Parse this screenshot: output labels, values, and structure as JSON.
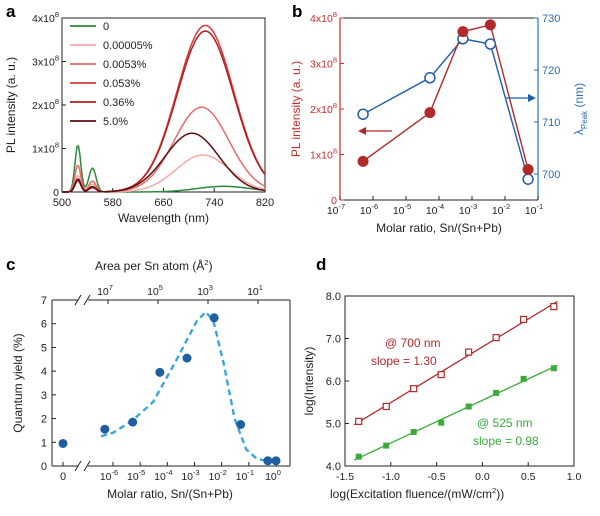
{
  "panels": {
    "a": {
      "letter": "a"
    },
    "b": {
      "letter": "b"
    },
    "c": {
      "letter": "c"
    },
    "d": {
      "letter": "d"
    }
  },
  "colors": {
    "axis": "#222222",
    "red_dark": "#b02a2a",
    "red_axis": "#c0302a",
    "blue": "#1f5fa8",
    "blue_axis": "#2a6db3",
    "green": "#3aaa3a",
    "cyan_dash": "#3aa6dc",
    "c_dots": "#1f5f9f"
  },
  "chart_data": [
    {
      "panel": "a",
      "type": "line",
      "xlabel": "Wavelength (nm)",
      "ylabel": "PL intensity (a. u.)",
      "xlim": [
        500,
        820
      ],
      "ylim": [
        0,
        400000000.0
      ],
      "x_ticks": [
        500,
        580,
        660,
        740,
        820
      ],
      "y_ticks": [
        {
          "value": 0,
          "label": "0"
        },
        {
          "value": 100000000.0,
          "label": "1x10",
          "exp": "8"
        },
        {
          "value": 200000000.0,
          "label": "2x10",
          "exp": "8"
        },
        {
          "value": 300000000.0,
          "label": "3x10",
          "exp": "8"
        },
        {
          "value": 400000000.0,
          "label": "4x10",
          "exp": "8"
        }
      ],
      "legend_position": "top-left",
      "series": [
        {
          "name": "0",
          "color": "#2f8a3a",
          "peak2_amp": 13000000.0,
          "peak2_center": 755,
          "peak2_width": 60,
          "peak1_amp": 108000000.0,
          "peak1_center": 525,
          "peak1_width": 6.5,
          "shoulder_amp": 55000000.0,
          "shoulder_center": 548
        },
        {
          "name": "0.00005%",
          "color": "#f3a8a8",
          "peak2_amp": 85000000.0,
          "peak2_center": 722,
          "peak2_width": 60,
          "peak1_amp": 38000000.0,
          "peak1_center": 525,
          "peak1_width": 6.5,
          "shoulder_amp": 18000000.0,
          "shoulder_center": 548
        },
        {
          "name": "0.0053%",
          "color": "#e36b6b",
          "peak2_amp": 195000000.0,
          "peak2_center": 720,
          "peak2_width": 61,
          "peak1_amp": 62000000.0,
          "peak1_center": 525,
          "peak1_width": 6.5,
          "shoulder_amp": 25000000.0,
          "shoulder_center": 548
        },
        {
          "name": "0.053%",
          "color": "#d63a3a",
          "peak2_amp": 383000000.0,
          "peak2_center": 726,
          "peak2_width": 63,
          "peak1_amp": 30000000.0,
          "peak1_center": 525,
          "peak1_width": 6.5,
          "shoulder_amp": 12000000.0,
          "shoulder_center": 548
        },
        {
          "name": "0.36%",
          "color": "#b21f1f",
          "peak2_amp": 370000000.0,
          "peak2_center": 726,
          "peak2_width": 63,
          "peak1_amp": 26000000.0,
          "peak1_center": 525,
          "peak1_width": 6.5,
          "shoulder_amp": 10000000.0,
          "shoulder_center": 548
        },
        {
          "name": "5.0%",
          "color": "#5a1010",
          "peak2_amp": 135000000.0,
          "peak2_center": 705,
          "peak2_width": 60,
          "peak1_amp": 30000000.0,
          "peak1_center": 525,
          "peak1_width": 6.5,
          "shoulder_amp": 12000000.0,
          "shoulder_center": 548
        }
      ]
    },
    {
      "panel": "b",
      "type": "scatter",
      "xlabel": "Molar ratio, Sn/(Sn+Pb)",
      "ylabel_left": "PL intensity (a. u.)",
      "ylabel_right": "λ",
      "ylabel_right_sub": "Peak",
      "ylabel_right_unit": " (nm)",
      "x_scale": "log",
      "xlim": [
        1e-07,
        0.1
      ],
      "x_ticks": [
        {
          "exp": -7
        },
        {
          "exp": -6
        },
        {
          "exp": -5
        },
        {
          "exp": -4
        },
        {
          "exp": -3
        },
        {
          "exp": -2
        },
        {
          "exp": -1
        }
      ],
      "x_tick_base": "10",
      "ylim_left": [
        0,
        400000000.0
      ],
      "y_left_ticks": [
        {
          "value": 0,
          "label": "0"
        },
        {
          "value": 100000000.0,
          "label": "1x10",
          "exp": "8"
        },
        {
          "value": 200000000.0,
          "label": "2x10",
          "exp": "8"
        },
        {
          "value": 300000000.0,
          "label": "3x10",
          "exp": "8"
        },
        {
          "value": 400000000.0,
          "label": "4x10",
          "exp": "8"
        }
      ],
      "ylim_right": [
        695,
        730
      ],
      "y_right_ticks": [
        700,
        710,
        720,
        730
      ],
      "series": [
        {
          "name": "PL intensity",
          "axis": "left",
          "x": [
            5e-07,
            5.3e-05,
            0.00053,
            0.0036,
            0.05
          ],
          "y": [
            85000000.0,
            192000000.0,
            370000000.0,
            385000000.0,
            67000000.0
          ]
        },
        {
          "name": "λPeak",
          "axis": "right",
          "x": [
            5e-07,
            5.3e-05,
            0.00053,
            0.0036,
            0.05
          ],
          "y": [
            711.5,
            718.5,
            726,
            725,
            699
          ]
        }
      ]
    },
    {
      "panel": "c",
      "type": "scatter",
      "xlabel": "Molar ratio, Sn/(Sn+Pb)",
      "ylabel": "Quantum yield (%)",
      "x2label": "Area per Sn atom (Å",
      "x2label_sup": "2",
      "x2label_end": ")",
      "ylim": [
        0,
        7
      ],
      "y_ticks": [
        0,
        1,
        2,
        3,
        4,
        5,
        6,
        7
      ],
      "x_scale": "log",
      "x_zero_label": "0",
      "x_ticks": [
        {
          "exp": -6
        },
        {
          "exp": -5
        },
        {
          "exp": -4
        },
        {
          "exp": -3
        },
        {
          "exp": -2
        },
        {
          "exp": -1
        }
      ],
      "x_one_label": "10",
      "x_one_exp": "0",
      "x_tick_base": "10",
      "top_ticks": [
        {
          "base": "10",
          "exp": "7"
        },
        {
          "base": "10",
          "exp": "5"
        },
        {
          "base": "10",
          "exp": "3"
        },
        {
          "base": "10",
          "exp": "1"
        }
      ],
      "series": [
        {
          "name": "Quantum yield",
          "zero_point": 0.95,
          "x": [
            5e-07,
            5.3e-06,
            5.3e-05,
            0.00053,
            0.0053,
            0.05,
            0.5,
            1.0
          ],
          "y": [
            1.55,
            1.85,
            3.95,
            4.55,
            6.25,
            1.75,
            0.22,
            0.22
          ]
        }
      ]
    },
    {
      "panel": "d",
      "type": "scatter",
      "xlabel": "log(Excitation fluence/(mW/cm",
      "xlabel_sup": "2",
      "xlabel_end": "))",
      "ylabel": "log(Intensity)",
      "xlim": [
        -1.5,
        1.0
      ],
      "x_ticks": [
        -1.5,
        -1.0,
        -0.5,
        0.0,
        0.5,
        1.0
      ],
      "ylim": [
        4.0,
        8.0
      ],
      "y_ticks": [
        4.0,
        5.0,
        6.0,
        7.0,
        8.0
      ],
      "annotations": [
        {
          "text": "@ 700 nm",
          "series": "700"
        },
        {
          "text": "slope = 1.30",
          "series": "700"
        },
        {
          "text": "@ 525 nm",
          "series": "525"
        },
        {
          "text": "slope = 0.98",
          "series": "525"
        }
      ],
      "series": [
        {
          "name": "700",
          "slope": 1.3,
          "marker": "open-square",
          "x": [
            -1.35,
            -1.05,
            -0.75,
            -0.45,
            -0.15,
            0.15,
            0.45,
            0.78
          ],
          "y": [
            5.05,
            5.4,
            5.82,
            6.15,
            6.68,
            7.02,
            7.45,
            7.75
          ]
        },
        {
          "name": "525",
          "slope": 0.98,
          "marker": "filled-square",
          "x": [
            -1.35,
            -1.05,
            -0.75,
            -0.45,
            -0.15,
            0.15,
            0.45,
            0.78
          ],
          "y": [
            4.22,
            4.48,
            4.8,
            5.02,
            5.4,
            5.72,
            6.05,
            6.3
          ]
        }
      ]
    }
  ]
}
